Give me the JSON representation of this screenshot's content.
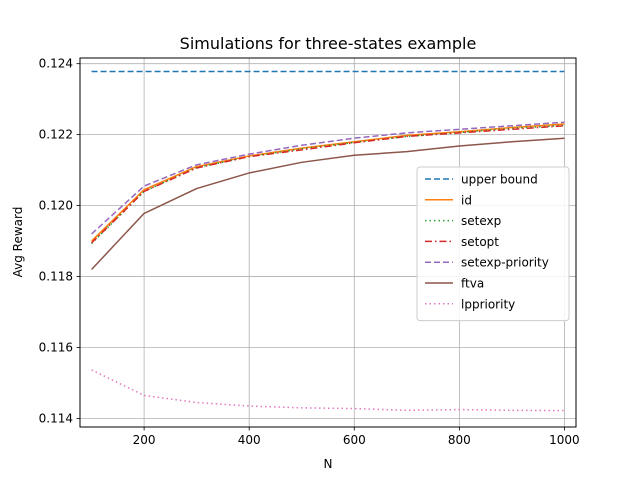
{
  "chart_data": {
    "type": "line",
    "title": "Simulations for three-states example",
    "xlabel": "N",
    "ylabel": "Avg Reward",
    "xlim": [
      78,
      1022
    ],
    "ylim": [
      0.11376,
      0.12416
    ],
    "xticks": [
      200,
      400,
      600,
      800,
      1000
    ],
    "yticks": [
      0.114,
      0.116,
      0.118,
      0.12,
      0.122,
      0.124
    ],
    "xtick_labels": [
      "200",
      "400",
      "600",
      "800",
      "1000"
    ],
    "ytick_labels": [
      "0.114",
      "0.116",
      "0.118",
      "0.120",
      "0.122",
      "0.124"
    ],
    "grid": true,
    "legend_position": "center-right",
    "x": [
      100,
      200,
      300,
      400,
      500,
      600,
      700,
      800,
      900,
      1000
    ],
    "series": [
      {
        "name": "upper bound",
        "color": "#1f77b4",
        "dash": "dashed",
        "values": [
          0.12378,
          0.12378,
          0.12378,
          0.12378,
          0.12378,
          0.12378,
          0.12378,
          0.12378,
          0.12378,
          0.12378
        ]
      },
      {
        "name": "id",
        "color": "#ff7f0e",
        "dash": "solid",
        "values": [
          0.119,
          0.12045,
          0.1211,
          0.1214,
          0.12162,
          0.1218,
          0.12198,
          0.12208,
          0.1222,
          0.1223
        ]
      },
      {
        "name": "setexp",
        "color": "#2ca02c",
        "dash": "dotted",
        "values": [
          0.11893,
          0.1204,
          0.12107,
          0.12138,
          0.1216,
          0.12178,
          0.12195,
          0.12206,
          0.12218,
          0.12226
        ]
      },
      {
        "name": "setopt",
        "color": "#d62728",
        "dash": "dashdot",
        "values": [
          0.11895,
          0.1204,
          0.12106,
          0.12138,
          0.12157,
          0.12177,
          0.12195,
          0.12205,
          0.12215,
          0.12225
        ]
      },
      {
        "name": "setexp-priority",
        "color": "#9467bd",
        "dash": "dashed",
        "values": [
          0.1192,
          0.12055,
          0.12115,
          0.12145,
          0.1217,
          0.1219,
          0.12205,
          0.12215,
          0.12225,
          0.12235
        ]
      },
      {
        "name": "ftva",
        "color": "#8c564b",
        "dash": "solid",
        "values": [
          0.1182,
          0.11978,
          0.12048,
          0.12092,
          0.12122,
          0.12142,
          0.12152,
          0.12168,
          0.1218,
          0.1219
        ]
      },
      {
        "name": "lppriority",
        "color": "#e377c2",
        "dash": "dotted",
        "values": [
          0.11537,
          0.11465,
          0.11445,
          0.11435,
          0.1143,
          0.11428,
          0.11423,
          0.11425,
          0.11423,
          0.11422
        ]
      }
    ]
  }
}
